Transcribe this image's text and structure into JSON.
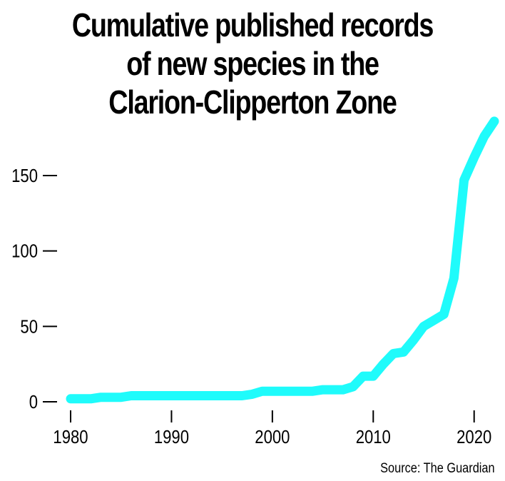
{
  "chart_data": {
    "type": "line",
    "title_lines": [
      "Cumulative published records",
      "of new species in the",
      "Clarion-Clipperton Zone"
    ],
    "xlabel": "",
    "ylabel": "",
    "xlim": [
      1980,
      2022
    ],
    "ylim": [
      0,
      185
    ],
    "x_ticks": [
      1980,
      1990,
      2000,
      2010,
      2020
    ],
    "y_ticks": [
      0,
      50,
      100,
      150
    ],
    "grid": false,
    "legend": "none",
    "line_color": "#1FFBFB",
    "series": [
      {
        "x": [
          1980,
          1981,
          1982,
          1983,
          1984,
          1985,
          1986,
          1987,
          1988,
          1989,
          1990,
          1991,
          1992,
          1993,
          1994,
          1995,
          1996,
          1997,
          1998,
          1999,
          2000,
          2001,
          2002,
          2003,
          2004,
          2005,
          2006,
          2007,
          2008,
          2009,
          2010,
          2011,
          2012,
          2013,
          2014,
          2015,
          2016,
          2017,
          2018,
          2019,
          2020,
          2021,
          2022
        ],
        "values": [
          2,
          2,
          2,
          3,
          3,
          3,
          4,
          4,
          4,
          4,
          4,
          4,
          4,
          4,
          4,
          4,
          4,
          4,
          5,
          7,
          7,
          7,
          7,
          7,
          7,
          8,
          8,
          8,
          10,
          17,
          17,
          25,
          32,
          33,
          41,
          50,
          54,
          58,
          82,
          147,
          162,
          176,
          186
        ]
      }
    ]
  },
  "source": "Source: The Guardian"
}
